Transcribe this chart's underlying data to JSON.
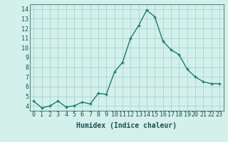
{
  "x": [
    0,
    1,
    2,
    3,
    4,
    5,
    6,
    7,
    8,
    9,
    10,
    11,
    12,
    13,
    14,
    15,
    16,
    17,
    18,
    19,
    20,
    21,
    22,
    23
  ],
  "y": [
    4.5,
    3.8,
    4.0,
    4.5,
    3.9,
    4.0,
    4.4,
    4.2,
    5.3,
    5.2,
    7.5,
    8.5,
    11.0,
    12.3,
    13.9,
    13.2,
    10.7,
    9.8,
    9.3,
    7.8,
    7.0,
    6.5,
    6.3,
    6.3
  ],
  "xlabel": "Humidex (Indice chaleur)",
  "ylim": [
    3.5,
    14.5
  ],
  "xlim": [
    -0.5,
    23.5
  ],
  "line_color": "#1a7a6e",
  "marker": "+",
  "bg_color": "#d4f0eb",
  "grid_color": "#9ecfca",
  "yticks": [
    4,
    5,
    6,
    7,
    8,
    9,
    10,
    11,
    12,
    13,
    14
  ],
  "xticks": [
    0,
    1,
    2,
    3,
    4,
    5,
    6,
    7,
    8,
    9,
    10,
    11,
    12,
    13,
    14,
    15,
    16,
    17,
    18,
    19,
    20,
    21,
    22,
    23
  ],
  "tick_fontsize": 6,
  "xlabel_fontsize": 7,
  "xlabel_color": "#1a5050",
  "line_width": 1.0,
  "marker_size": 3
}
